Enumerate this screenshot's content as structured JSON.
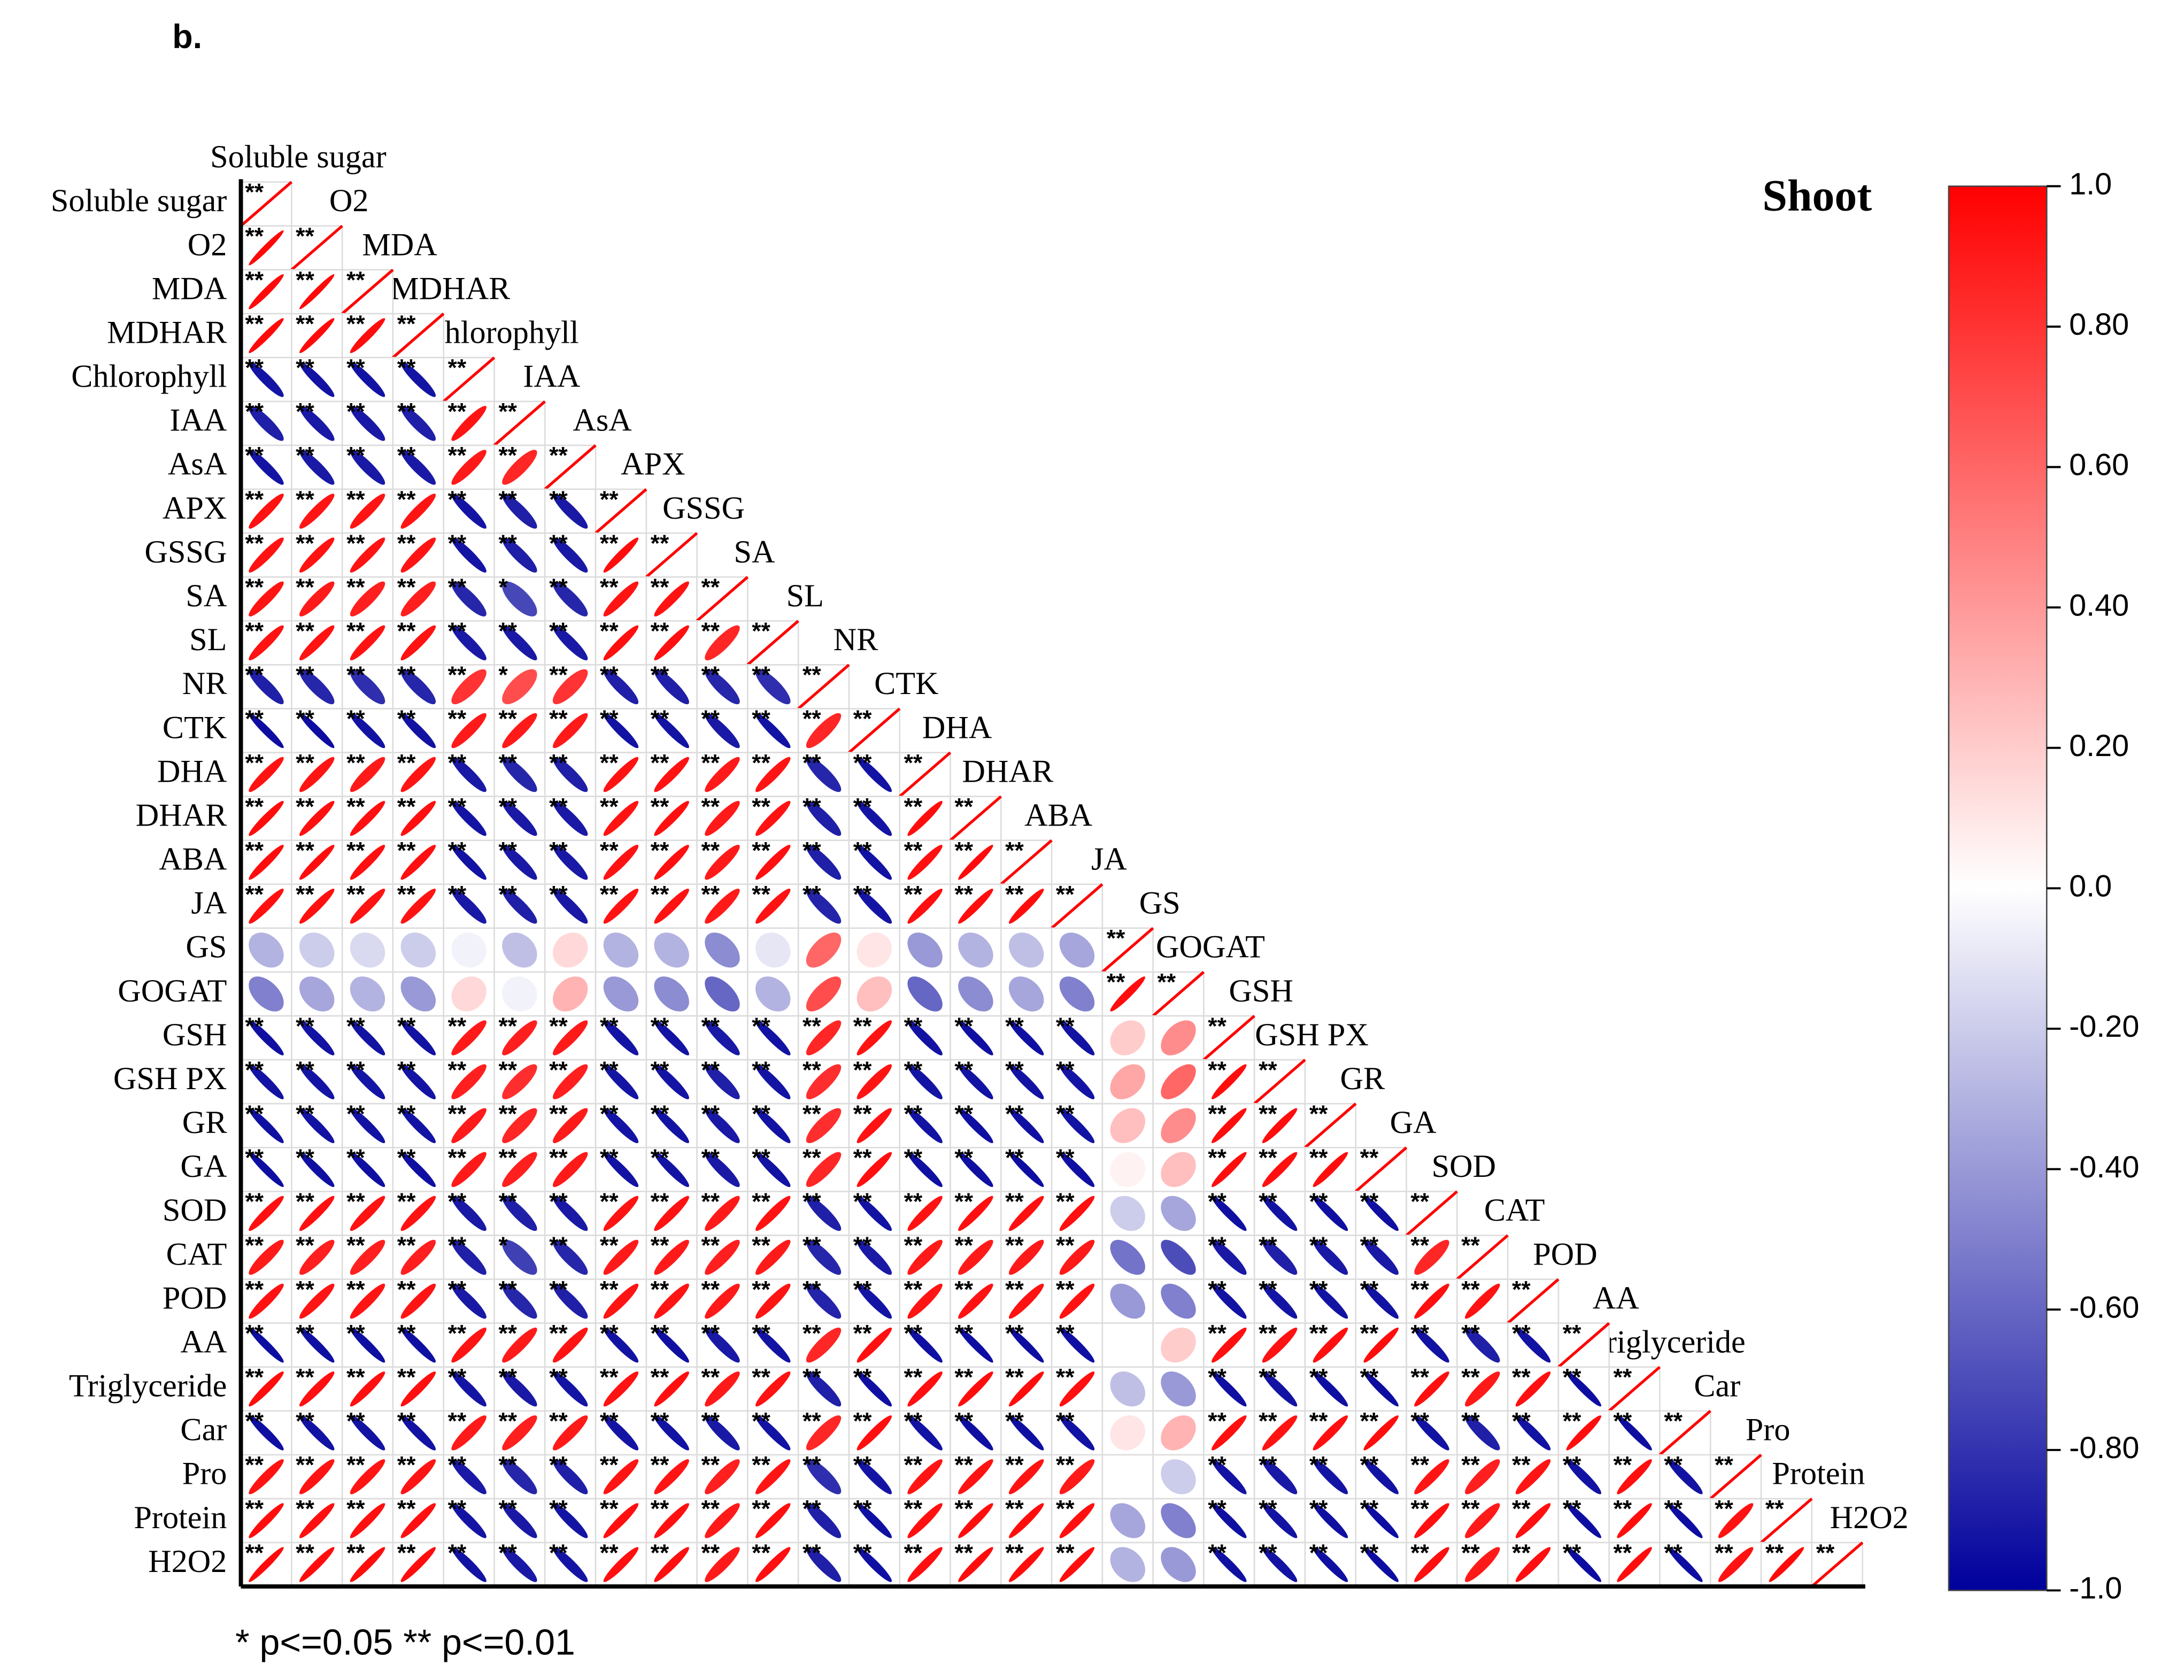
{
  "chart_data": {
    "type": "correlation",
    "panel_label": "b.",
    "title": "Shoot",
    "note": "* p<=0.05  ** p<=0.01",
    "labels": [
      "Soluble sugar",
      "O2",
      "MDA",
      "MDHAR",
      "Chlorophyll",
      "IAA",
      "AsA",
      "APX",
      "GSSG",
      "SA",
      "SL",
      "NR",
      "CTK",
      "DHA",
      "DHAR",
      "ABA",
      "JA",
      "GS",
      "GOGAT",
      "GSH",
      "GSH PX",
      "GR",
      "GA",
      "SOD",
      "CAT",
      "POD",
      "AA",
      "Triglyceride",
      "Car",
      "Pro",
      "Protein",
      "H2O2"
    ],
    "values": [
      [
        1
      ],
      [
        0.97,
        1
      ],
      [
        0.96,
        0.97,
        1
      ],
      [
        0.96,
        0.96,
        0.95,
        1
      ],
      [
        -0.92,
        -0.93,
        -0.93,
        -0.92,
        1
      ],
      [
        -0.88,
        -0.9,
        -0.9,
        -0.88,
        0.92,
        1
      ],
      [
        -0.92,
        -0.9,
        -0.9,
        -0.9,
        0.9,
        0.85,
        1
      ],
      [
        0.93,
        0.92,
        0.92,
        0.92,
        -0.92,
        -0.88,
        -0.9,
        1
      ],
      [
        0.93,
        0.93,
        0.93,
        0.92,
        -0.92,
        -0.88,
        -0.9,
        0.95,
        1
      ],
      [
        0.92,
        0.9,
        0.88,
        0.88,
        -0.85,
        -0.72,
        -0.85,
        0.92,
        0.93,
        1
      ],
      [
        0.93,
        0.93,
        0.93,
        0.93,
        -0.9,
        -0.9,
        -0.9,
        0.94,
        0.94,
        0.85,
        1
      ],
      [
        -0.88,
        -0.85,
        -0.82,
        -0.85,
        0.8,
        0.7,
        0.8,
        -0.88,
        -0.88,
        -0.85,
        -0.82,
        1
      ],
      [
        -0.95,
        -0.95,
        -0.93,
        -0.93,
        0.9,
        0.9,
        0.9,
        -0.93,
        -0.93,
        -0.9,
        -0.93,
        0.85,
        1
      ],
      [
        0.93,
        0.92,
        0.9,
        0.92,
        -0.9,
        -0.85,
        -0.88,
        0.93,
        0.93,
        0.9,
        0.92,
        -0.85,
        -0.93,
        1
      ],
      [
        0.95,
        0.94,
        0.94,
        0.94,
        -0.92,
        -0.9,
        -0.9,
        0.93,
        0.94,
        0.9,
        0.93,
        -0.88,
        -0.92,
        0.95,
        1
      ],
      [
        0.95,
        0.95,
        0.94,
        0.94,
        -0.93,
        -0.9,
        -0.9,
        0.93,
        0.94,
        0.9,
        0.94,
        -0.88,
        -0.93,
        0.94,
        0.96,
        1
      ],
      [
        0.94,
        0.94,
        0.93,
        0.93,
        -0.9,
        -0.88,
        -0.9,
        0.93,
        0.93,
        0.9,
        0.93,
        -0.86,
        -0.92,
        0.94,
        0.95,
        0.95,
        1
      ],
      [
        -0.3,
        -0.2,
        -0.15,
        -0.2,
        -0.05,
        -0.25,
        0.15,
        -0.3,
        -0.3,
        -0.45,
        -0.1,
        0.6,
        0.1,
        -0.4,
        -0.3,
        -0.25,
        -0.35,
        1
      ],
      [
        -0.5,
        -0.35,
        -0.3,
        -0.4,
        0.15,
        -0.05,
        0.3,
        -0.4,
        -0.45,
        -0.6,
        -0.3,
        0.7,
        0.25,
        -0.6,
        -0.45,
        -0.35,
        -0.5,
        0.95,
        1
      ],
      [
        -0.94,
        -0.93,
        -0.93,
        -0.93,
        0.9,
        0.88,
        0.9,
        -0.92,
        -0.93,
        -0.9,
        -0.93,
        0.85,
        0.93,
        -0.93,
        -0.94,
        -0.94,
        -0.93,
        0.2,
        0.45,
        1
      ],
      [
        -0.93,
        -0.92,
        -0.92,
        -0.92,
        0.88,
        0.82,
        0.88,
        -0.92,
        -0.92,
        -0.88,
        -0.92,
        0.82,
        0.92,
        -0.92,
        -0.93,
        -0.93,
        -0.92,
        0.35,
        0.6,
        0.95,
        1
      ],
      [
        -0.94,
        -0.93,
        -0.93,
        -0.93,
        0.9,
        0.85,
        0.9,
        -0.92,
        -0.93,
        -0.9,
        -0.93,
        0.82,
        0.93,
        -0.93,
        -0.94,
        -0.94,
        -0.93,
        0.25,
        0.45,
        0.95,
        0.95,
        1
      ],
      [
        -0.95,
        -0.94,
        -0.94,
        -0.94,
        0.9,
        0.88,
        0.9,
        -0.93,
        -0.93,
        -0.9,
        -0.93,
        0.85,
        0.94,
        -0.94,
        -0.94,
        -0.95,
        -0.94,
        0.05,
        0.25,
        0.95,
        0.94,
        0.95,
        1
      ],
      [
        0.94,
        0.94,
        0.93,
        0.93,
        -0.9,
        -0.88,
        -0.9,
        0.93,
        0.93,
        0.9,
        0.93,
        -0.88,
        -0.93,
        0.93,
        0.94,
        0.94,
        0.94,
        -0.2,
        -0.35,
        -0.94,
        -0.93,
        -0.94,
        -0.94,
        1
      ],
      [
        0.9,
        0.88,
        0.88,
        0.88,
        -0.88,
        -0.75,
        -0.85,
        0.9,
        0.9,
        0.88,
        0.9,
        -0.85,
        -0.9,
        0.9,
        0.9,
        0.9,
        0.9,
        -0.55,
        -0.7,
        -0.9,
        -0.88,
        -0.9,
        -0.9,
        0.85,
        1
      ],
      [
        0.93,
        0.92,
        0.92,
        0.92,
        -0.9,
        -0.85,
        -0.88,
        0.92,
        0.92,
        0.9,
        0.92,
        -0.86,
        -0.92,
        0.92,
        0.93,
        0.93,
        0.93,
        -0.4,
        -0.5,
        -0.93,
        -0.92,
        -0.93,
        -0.93,
        0.94,
        0.93,
        1
      ],
      [
        -0.95,
        -0.94,
        -0.94,
        -0.94,
        0.92,
        0.9,
        0.92,
        -0.93,
        -0.94,
        -0.9,
        -0.93,
        0.85,
        0.94,
        -0.94,
        -0.95,
        -0.95,
        -0.94,
        0,
        0.2,
        0.94,
        0.93,
        0.94,
        0.95,
        -0.93,
        -0.88,
        -0.93,
        1
      ],
      [
        0.95,
        0.94,
        0.94,
        0.94,
        -0.92,
        -0.9,
        -0.92,
        0.93,
        0.94,
        0.9,
        0.93,
        -0.88,
        -0.94,
        0.94,
        0.95,
        0.95,
        0.94,
        -0.25,
        -0.4,
        -0.94,
        -0.93,
        -0.94,
        -0.95,
        0.94,
        0.9,
        0.94,
        -0.95,
        1
      ],
      [
        -0.94,
        -0.93,
        -0.93,
        -0.93,
        0.9,
        0.88,
        0.9,
        -0.92,
        -0.93,
        -0.9,
        -0.93,
        0.85,
        0.94,
        -0.93,
        -0.94,
        -0.94,
        -0.93,
        0.1,
        0.3,
        0.94,
        0.93,
        0.94,
        0.95,
        -0.93,
        -0.88,
        -0.93,
        0.95,
        -0.95,
        1
      ],
      [
        0.93,
        0.92,
        0.92,
        0.92,
        -0.9,
        -0.85,
        -0.88,
        0.92,
        0.92,
        0.88,
        0.92,
        -0.82,
        -0.92,
        0.92,
        0.93,
        0.93,
        0.9,
        0,
        -0.2,
        -0.93,
        -0.9,
        -0.92,
        -0.93,
        0.92,
        0.88,
        0.92,
        -0.93,
        0.94,
        -0.93,
        1
      ],
      [
        0.95,
        0.94,
        0.94,
        0.94,
        -0.92,
        -0.9,
        -0.92,
        0.94,
        0.94,
        0.9,
        0.94,
        -0.88,
        -0.94,
        0.94,
        0.95,
        0.95,
        0.94,
        -0.35,
        -0.5,
        -0.94,
        -0.93,
        -0.94,
        -0.95,
        0.94,
        0.9,
        0.94,
        -0.95,
        0.95,
        -0.95,
        0.93,
        1
      ],
      [
        0.96,
        0.95,
        0.95,
        0.95,
        -0.93,
        -0.9,
        -0.92,
        0.94,
        0.94,
        0.9,
        0.94,
        -0.88,
        -0.94,
        0.94,
        0.95,
        0.95,
        0.95,
        -0.3,
        -0.4,
        -0.94,
        -0.93,
        -0.94,
        -0.95,
        0.94,
        0.9,
        0.94,
        -0.95,
        0.95,
        -0.95,
        0.93,
        0.96,
        1
      ]
    ],
    "significance": [
      [
        "**"
      ],
      [
        "**",
        "**"
      ],
      [
        "**",
        "**",
        "**"
      ],
      [
        "**",
        "**",
        "**",
        "**"
      ],
      [
        "**",
        "**",
        "**",
        "**",
        "**"
      ],
      [
        "**",
        "**",
        "**",
        "**",
        "**",
        "**"
      ],
      [
        "**",
        "**",
        "**",
        "**",
        "**",
        "**",
        "**"
      ],
      [
        "**",
        "**",
        "**",
        "**",
        "**",
        "**",
        "**",
        "**"
      ],
      [
        "**",
        "**",
        "**",
        "**",
        "**",
        "**",
        "**",
        "**",
        "**"
      ],
      [
        "**",
        "**",
        "**",
        "**",
        "**",
        "*",
        "**",
        "**",
        "**",
        "**"
      ],
      [
        "**",
        "**",
        "**",
        "**",
        "**",
        "**",
        "**",
        "**",
        "**",
        "**",
        "**"
      ],
      [
        "**",
        "**",
        "**",
        "**",
        "**",
        "*",
        "**",
        "**",
        "**",
        "**",
        "**",
        "**"
      ],
      [
        "**",
        "**",
        "**",
        "**",
        "**",
        "**",
        "**",
        "**",
        "**",
        "**",
        "**",
        "**",
        "**"
      ],
      [
        "**",
        "**",
        "**",
        "**",
        "**",
        "**",
        "**",
        "**",
        "**",
        "**",
        "**",
        "**",
        "**",
        "**"
      ],
      [
        "**",
        "**",
        "**",
        "**",
        "**",
        "**",
        "**",
        "**",
        "**",
        "**",
        "**",
        "**",
        "**",
        "**",
        "**"
      ],
      [
        "**",
        "**",
        "**",
        "**",
        "**",
        "**",
        "**",
        "**",
        "**",
        "**",
        "**",
        "**",
        "**",
        "**",
        "**",
        "**"
      ],
      [
        "**",
        "**",
        "**",
        "**",
        "**",
        "**",
        "**",
        "**",
        "**",
        "**",
        "**",
        "**",
        "**",
        "**",
        "**",
        "**",
        "**"
      ],
      [
        null,
        null,
        null,
        null,
        null,
        null,
        null,
        null,
        null,
        null,
        null,
        null,
        null,
        null,
        null,
        null,
        null,
        "**"
      ],
      [
        null,
        null,
        null,
        null,
        null,
        null,
        null,
        null,
        null,
        null,
        null,
        null,
        null,
        null,
        null,
        null,
        null,
        "**",
        "**"
      ],
      [
        "**",
        "**",
        "**",
        "**",
        "**",
        "**",
        "**",
        "**",
        "**",
        "**",
        "**",
        "**",
        "**",
        "**",
        "**",
        "**",
        "**",
        null,
        null,
        "**"
      ],
      [
        "**",
        "**",
        "**",
        "**",
        "**",
        "**",
        "**",
        "**",
        "**",
        "**",
        "**",
        "**",
        "**",
        "**",
        "**",
        "**",
        "**",
        null,
        null,
        "**",
        "**"
      ],
      [
        "**",
        "**",
        "**",
        "**",
        "**",
        "**",
        "**",
        "**",
        "**",
        "**",
        "**",
        "**",
        "**",
        "**",
        "**",
        "**",
        "**",
        null,
        null,
        "**",
        "**",
        "**"
      ],
      [
        "**",
        "**",
        "**",
        "**",
        "**",
        "**",
        "**",
        "**",
        "**",
        "**",
        "**",
        "**",
        "**",
        "**",
        "**",
        "**",
        "**",
        null,
        null,
        "**",
        "**",
        "**",
        "**"
      ],
      [
        "**",
        "**",
        "**",
        "**",
        "**",
        "**",
        "**",
        "**",
        "**",
        "**",
        "**",
        "**",
        "**",
        "**",
        "**",
        "**",
        "**",
        null,
        null,
        "**",
        "**",
        "**",
        "**",
        "**"
      ],
      [
        "**",
        "**",
        "**",
        "**",
        "**",
        "*",
        "**",
        "**",
        "**",
        "**",
        "**",
        "**",
        "**",
        "**",
        "**",
        "**",
        "**",
        null,
        null,
        "**",
        "**",
        "**",
        "**",
        "**",
        "**"
      ],
      [
        "**",
        "**",
        "**",
        "**",
        "**",
        "**",
        "**",
        "**",
        "**",
        "**",
        "**",
        "**",
        "**",
        "**",
        "**",
        "**",
        "**",
        null,
        null,
        "**",
        "**",
        "**",
        "**",
        "**",
        "**",
        "**"
      ],
      [
        "**",
        "**",
        "**",
        "**",
        "**",
        "**",
        "**",
        "**",
        "**",
        "**",
        "**",
        "**",
        "**",
        "**",
        "**",
        "**",
        "**",
        null,
        null,
        "**",
        "**",
        "**",
        "**",
        "**",
        "**",
        "**",
        "**"
      ],
      [
        "**",
        "**",
        "**",
        "**",
        "**",
        "**",
        "**",
        "**",
        "**",
        "**",
        "**",
        "**",
        "**",
        "**",
        "**",
        "**",
        "**",
        null,
        null,
        "**",
        "**",
        "**",
        "**",
        "**",
        "**",
        "**",
        "**",
        "**"
      ],
      [
        "**",
        "**",
        "**",
        "**",
        "**",
        "**",
        "**",
        "**",
        "**",
        "**",
        "**",
        "**",
        "**",
        "**",
        "**",
        "**",
        "**",
        null,
        null,
        "**",
        "**",
        "**",
        "**",
        "**",
        "**",
        "**",
        "**",
        "**",
        "**"
      ],
      [
        "**",
        "**",
        "**",
        "**",
        "**",
        "**",
        "**",
        "**",
        "**",
        "**",
        "**",
        "**",
        "**",
        "**",
        "**",
        "**",
        "**",
        null,
        null,
        "**",
        "**",
        "**",
        "**",
        "**",
        "**",
        "**",
        "**",
        "**",
        "**",
        "**"
      ],
      [
        "**",
        "**",
        "**",
        "**",
        "**",
        "**",
        "**",
        "**",
        "**",
        "**",
        "**",
        "**",
        "**",
        "**",
        "**",
        "**",
        "**",
        null,
        null,
        "**",
        "**",
        "**",
        "**",
        "**",
        "**",
        "**",
        "**",
        "**",
        "**",
        "**",
        "**"
      ],
      [
        "**",
        "**",
        "**",
        "**",
        "**",
        "**",
        "**",
        "**",
        "**",
        "**",
        "**",
        "**",
        "**",
        "**",
        "**",
        "**",
        "**",
        null,
        null,
        "**",
        "**",
        "**",
        "**",
        "**",
        "**",
        "**",
        "**",
        "**",
        "**",
        "**",
        "**",
        "**"
      ]
    ],
    "clim": [
      -1,
      1
    ],
    "colorbar_ticks": [
      {
        "value": 1,
        "label": "1.0"
      },
      {
        "value": 0.8,
        "label": "0.80"
      },
      {
        "value": 0.6,
        "label": "0.60"
      },
      {
        "value": 0.4,
        "label": "0.40"
      },
      {
        "value": 0.2,
        "label": "0.20"
      },
      {
        "value": 0,
        "label": "0.0"
      },
      {
        "value": -0.2,
        "label": "-0.20"
      },
      {
        "value": -0.4,
        "label": "-0.40"
      },
      {
        "value": -0.6,
        "label": "-0.60"
      },
      {
        "value": -0.8,
        "label": "-0.80"
      },
      {
        "value": -1,
        "label": "-1.0"
      }
    ],
    "colorscale": [
      "#00009c",
      "#ffffff",
      "#ff0000"
    ]
  }
}
